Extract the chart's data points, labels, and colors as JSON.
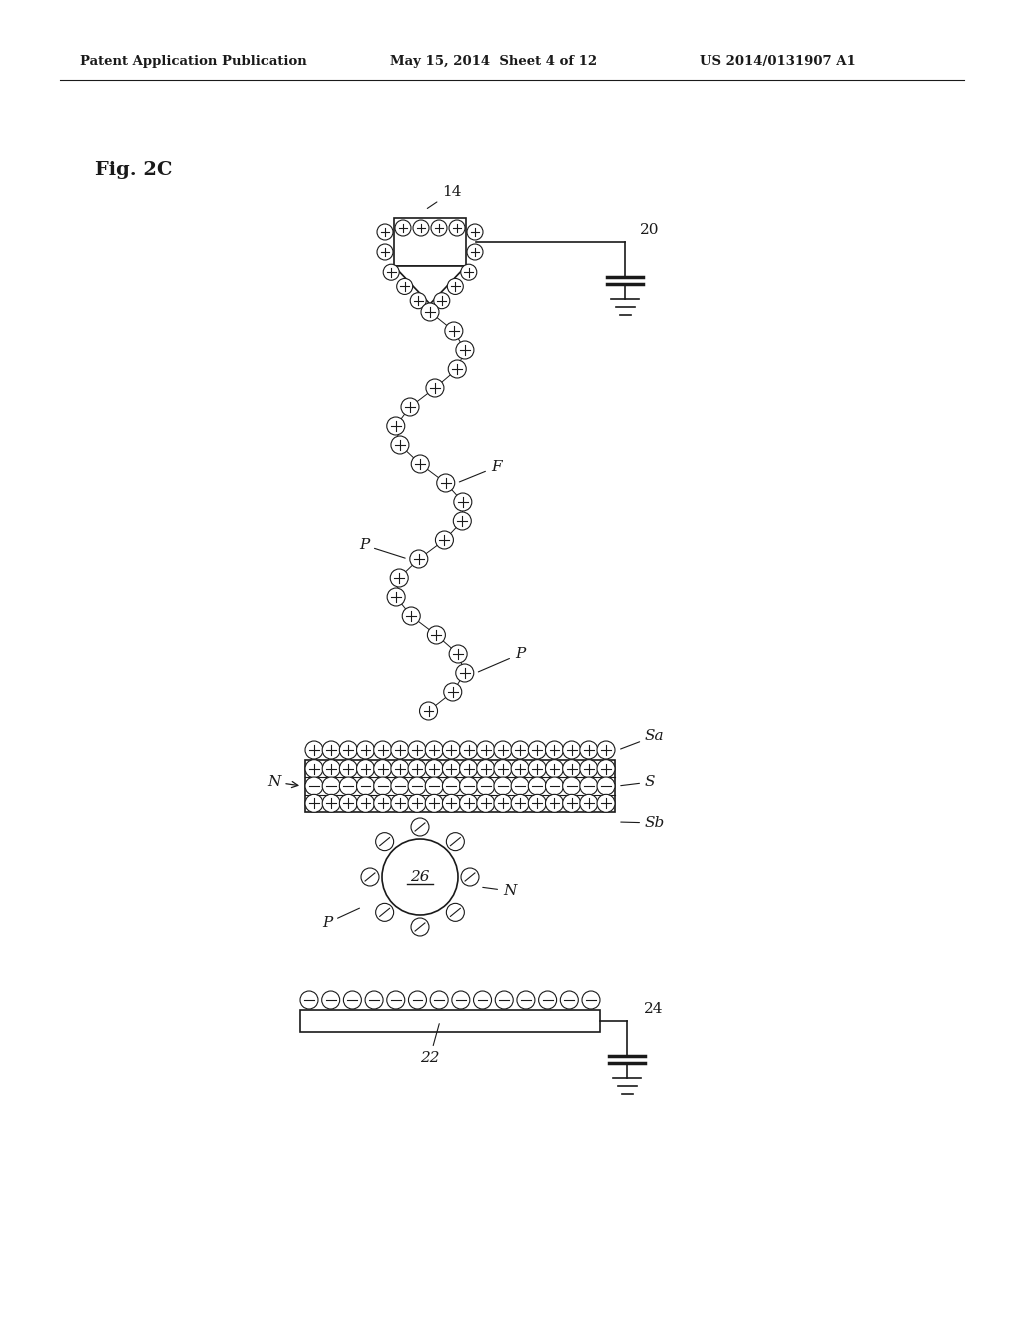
{
  "bg_color": "#ffffff",
  "text_color": "#1a1a1a",
  "header_left": "Patent Application Publication",
  "header_center": "May 15, 2014  Sheet 4 of 12",
  "header_right": "US 2014/0131907 A1",
  "fig_label": "Fig. 2C"
}
